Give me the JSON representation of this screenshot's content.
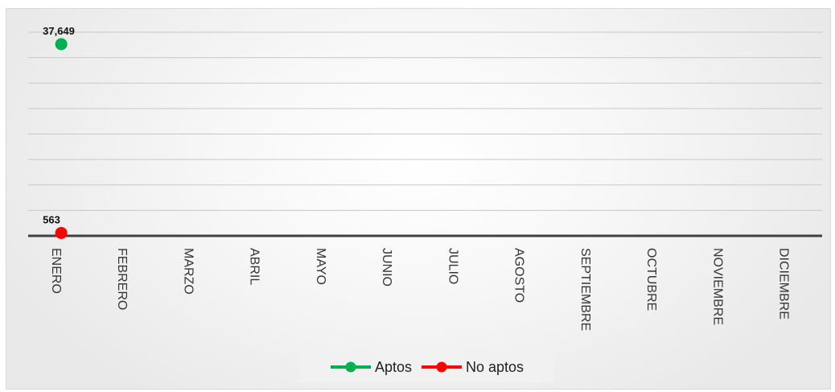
{
  "chart_data": {
    "type": "line",
    "title": "",
    "xlabel": "",
    "ylabel": "",
    "categories": [
      "ENERO",
      "FEBRERO",
      "MARZO",
      "ABRIL",
      "MAYO",
      "JUNIO",
      "JULIO",
      "AGOSTO",
      "SEPTIEMBRE",
      "OCTUBRE",
      "NOVIEMBRE",
      "DICIEMBRE"
    ],
    "ylim": [
      0,
      40000
    ],
    "gridlines": true,
    "legend_position": "bottom",
    "series": [
      {
        "name": "Aptos",
        "color": "#00b050",
        "values": [
          37649,
          null,
          null,
          null,
          null,
          null,
          null,
          null,
          null,
          null,
          null,
          null
        ],
        "labels": [
          "37,649"
        ]
      },
      {
        "name": "No aptos",
        "color": "#ff0000",
        "values": [
          563,
          null,
          null,
          null,
          null,
          null,
          null,
          null,
          null,
          null,
          null,
          null
        ],
        "labels": [
          "563"
        ]
      }
    ]
  }
}
